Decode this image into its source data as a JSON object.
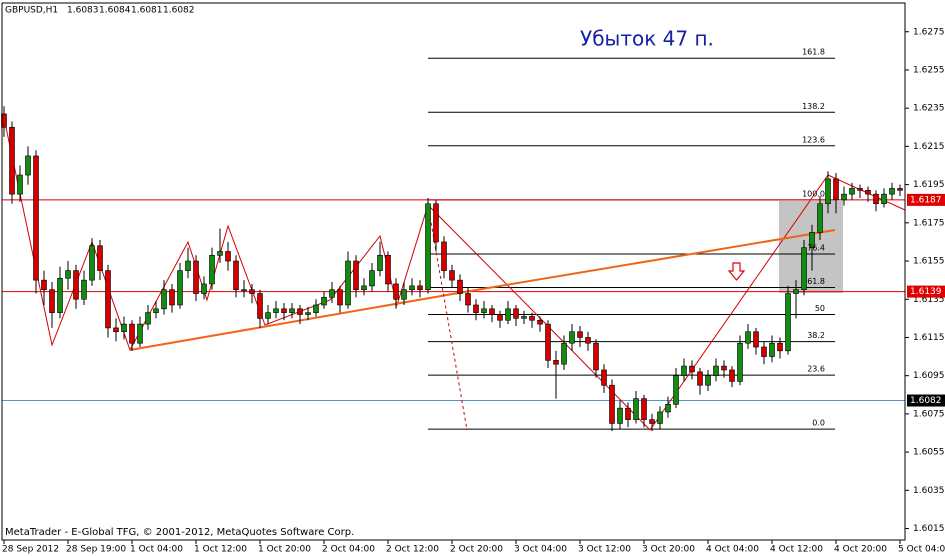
{
  "chart_data": {
    "type": "candlestick",
    "symbol": "GBPUSD,H1",
    "header_prices": [
      1.6083,
      1.6084,
      1.6081,
      1.6082
    ],
    "title": "Убыток 47 п.",
    "footer": "MetaTrader - E-Global TFG, © 2001-2012, MetaQuotes Software Corp.",
    "bull_color": "#118c11",
    "bear_color": "#d40000",
    "xlim": [
      -0.25,
      112.625
    ],
    "xticks": [
      {
        "value": 0,
        "label": "28 Sep 2012"
      },
      {
        "value": 8,
        "label": "28 Sep 19:00"
      },
      {
        "value": 16,
        "label": "1 Oct 04:00"
      },
      {
        "value": 24,
        "label": "1 Oct 12:00"
      },
      {
        "value": 32,
        "label": "1 Oct 20:00"
      },
      {
        "value": 40,
        "label": "2 Oct 04:00"
      },
      {
        "value": 48,
        "label": "2 Oct 12:00"
      },
      {
        "value": 56,
        "label": "2 Oct 20:00"
      },
      {
        "value": 64,
        "label": "3 Oct 04:00"
      },
      {
        "value": 72,
        "label": "3 Oct 12:00"
      },
      {
        "value": 80,
        "label": "3 Oct 20:00"
      },
      {
        "value": 88,
        "label": "4 Oct 04:00"
      },
      {
        "value": 96,
        "label": "4 Oct 12:00"
      },
      {
        "value": 104,
        "label": "4 Oct 20:00"
      },
      {
        "value": 112,
        "label": "5 Oct 04:00"
      }
    ],
    "ylim": [
      1.6009,
      1.6289
    ],
    "yticks": [
      1.6275,
      1.6255,
      1.6235,
      1.6215,
      1.6195,
      1.6175,
      1.6155,
      1.6135,
      1.6115,
      1.6095,
      1.6075,
      1.6055,
      1.6035,
      1.6015
    ],
    "hlines": [
      {
        "value": 1.6187,
        "color": "#e00000"
      },
      {
        "value": 1.6139,
        "color": "#e00000"
      },
      {
        "value": 1.6082,
        "color": "#000000",
        "line_color": "#5b93c9"
      }
    ],
    "fib": {
      "low": 1.6067,
      "high": 1.6187,
      "levels": [
        {
          "value": 0,
          "label": "0.0"
        },
        23.6,
        38.2,
        50,
        61.8,
        76.4,
        {
          "value": 100,
          "label": "100.0"
        },
        123.6,
        138.2,
        161.8
      ]
    },
    "ohlc": [
      [
        1.6232,
        1.6236,
        1.622,
        1.6225
      ],
      [
        1.6225,
        1.6228,
        1.6185,
        1.619
      ],
      [
        1.619,
        1.6205,
        1.6186,
        1.62
      ],
      [
        1.62,
        1.6215,
        1.6195,
        1.621
      ],
      [
        1.621,
        1.6213,
        1.6138,
        1.6145
      ],
      [
        1.6145,
        1.615,
        1.6132,
        1.614
      ],
      [
        1.614,
        1.6144,
        1.612,
        1.6128
      ],
      [
        1.6128,
        1.6152,
        1.6125,
        1.6146
      ],
      [
        1.6146,
        1.6155,
        1.614,
        1.615
      ],
      [
        1.615,
        1.6153,
        1.613,
        1.6135
      ],
      [
        1.6135,
        1.615,
        1.6132,
        1.6145
      ],
      [
        1.6145,
        1.6167,
        1.6142,
        1.6163
      ],
      [
        1.6163,
        1.6166,
        1.6145,
        1.615
      ],
      [
        1.615,
        1.6153,
        1.6115,
        1.612
      ],
      [
        1.612,
        1.6125,
        1.6113,
        1.6118
      ],
      [
        1.6118,
        1.6126,
        1.6114,
        1.6122
      ],
      [
        1.6122,
        1.6124,
        1.6108,
        1.6112
      ],
      [
        1.6112,
        1.6126,
        1.611,
        1.6122
      ],
      [
        1.6122,
        1.6132,
        1.6119,
        1.6128
      ],
      [
        1.6128,
        1.6134,
        1.6125,
        1.613
      ],
      [
        1.613,
        1.6145,
        1.6127,
        1.614
      ],
      [
        1.614,
        1.6143,
        1.6128,
        1.6132
      ],
      [
        1.6132,
        1.6154,
        1.613,
        1.615
      ],
      [
        1.615,
        1.6162,
        1.6146,
        1.6155
      ],
      [
        1.6155,
        1.6158,
        1.6134,
        1.6138
      ],
      [
        1.6138,
        1.6147,
        1.6135,
        1.6143
      ],
      [
        1.6143,
        1.6162,
        1.614,
        1.6158
      ],
      [
        1.6158,
        1.6172,
        1.6154,
        1.616
      ],
      [
        1.616,
        1.6165,
        1.615,
        1.6155
      ],
      [
        1.6155,
        1.6158,
        1.6136,
        1.614
      ],
      [
        1.614,
        1.6145,
        1.6136,
        1.614
      ],
      [
        1.614,
        1.6143,
        1.6133,
        1.6138
      ],
      [
        1.6138,
        1.614,
        1.612,
        1.6125
      ],
      [
        1.6125,
        1.6132,
        1.6122,
        1.6128
      ],
      [
        1.6128,
        1.6134,
        1.6125,
        1.613
      ],
      [
        1.613,
        1.6133,
        1.6124,
        1.6128
      ],
      [
        1.6128,
        1.6133,
        1.6125,
        1.613
      ],
      [
        1.613,
        1.6132,
        1.6122,
        1.6127
      ],
      [
        1.6127,
        1.6131,
        1.6124,
        1.6128
      ],
      [
        1.6128,
        1.6135,
        1.6126,
        1.6132
      ],
      [
        1.6132,
        1.6139,
        1.613,
        1.6136
      ],
      [
        1.6136,
        1.6144,
        1.6133,
        1.614
      ],
      [
        1.614,
        1.6142,
        1.6128,
        1.6132
      ],
      [
        1.6132,
        1.616,
        1.613,
        1.6155
      ],
      [
        1.6155,
        1.6158,
        1.6136,
        1.614
      ],
      [
        1.614,
        1.6146,
        1.6137,
        1.6142
      ],
      [
        1.6142,
        1.6154,
        1.6139,
        1.615
      ],
      [
        1.615,
        1.6165,
        1.6147,
        1.6158
      ],
      [
        1.6158,
        1.616,
        1.6139,
        1.6143
      ],
      [
        1.6143,
        1.6146,
        1.613,
        1.6135
      ],
      [
        1.6135,
        1.6144,
        1.6132,
        1.614
      ],
      [
        1.614,
        1.6146,
        1.6137,
        1.6142
      ],
      [
        1.6142,
        1.6145,
        1.6136,
        1.614
      ],
      [
        1.614,
        1.6188,
        1.6138,
        1.6185
      ],
      [
        1.6185,
        1.6187,
        1.616,
        1.6165
      ],
      [
        1.6165,
        1.6168,
        1.6146,
        1.615
      ],
      [
        1.615,
        1.6153,
        1.6141,
        1.6145
      ],
      [
        1.6145,
        1.6148,
        1.6134,
        1.6138
      ],
      [
        1.6138,
        1.6141,
        1.6128,
        1.6132
      ],
      [
        1.6132,
        1.6135,
        1.6124,
        1.6128
      ],
      [
        1.6128,
        1.6134,
        1.6125,
        1.613
      ],
      [
        1.613,
        1.6132,
        1.6123,
        1.6127
      ],
      [
        1.6127,
        1.6129,
        1.612,
        1.6124
      ],
      [
        1.6124,
        1.6134,
        1.6122,
        1.613
      ],
      [
        1.613,
        1.6132,
        1.6121,
        1.6125
      ],
      [
        1.6125,
        1.6129,
        1.6122,
        1.6126
      ],
      [
        1.6126,
        1.6128,
        1.612,
        1.6124
      ],
      [
        1.6124,
        1.6126,
        1.6118,
        1.6122
      ],
      [
        1.6122,
        1.6124,
        1.6099,
        1.6103
      ],
      [
        1.6103,
        1.6108,
        1.6083,
        1.6101
      ],
      [
        1.6101,
        1.6116,
        1.6098,
        1.6112
      ],
      [
        1.6112,
        1.6122,
        1.6108,
        1.6118
      ],
      [
        1.6118,
        1.6121,
        1.611,
        1.6115
      ],
      [
        1.6115,
        1.6118,
        1.6108,
        1.6112
      ],
      [
        1.6112,
        1.6114,
        1.6094,
        1.6098
      ],
      [
        1.6098,
        1.6101,
        1.6086,
        1.609
      ],
      [
        1.609,
        1.6093,
        1.6066,
        1.607
      ],
      [
        1.607,
        1.6082,
        1.6067,
        1.6078
      ],
      [
        1.6078,
        1.6081,
        1.6068,
        1.6072
      ],
      [
        1.6072,
        1.6087,
        1.607,
        1.6083
      ],
      [
        1.6083,
        1.6085,
        1.6068,
        1.6072
      ],
      [
        1.6072,
        1.6075,
        1.6066,
        1.607
      ],
      [
        1.607,
        1.6079,
        1.6067,
        1.6076
      ],
      [
        1.6076,
        1.6084,
        1.6073,
        1.608
      ],
      [
        1.608,
        1.6099,
        1.6078,
        1.6095
      ],
      [
        1.6095,
        1.6104,
        1.6092,
        1.61
      ],
      [
        1.61,
        1.6103,
        1.6093,
        1.6097
      ],
      [
        1.6097,
        1.6099,
        1.6085,
        1.609
      ],
      [
        1.609,
        1.6098,
        1.6087,
        1.6095
      ],
      [
        1.6095,
        1.6104,
        1.6092,
        1.61
      ],
      [
        1.61,
        1.6103,
        1.6094,
        1.6098
      ],
      [
        1.6098,
        1.61,
        1.6089,
        1.6092
      ],
      [
        1.6092,
        1.6116,
        1.609,
        1.6112
      ],
      [
        1.6112,
        1.6122,
        1.6109,
        1.6118
      ],
      [
        1.6118,
        1.612,
        1.6106,
        1.611
      ],
      [
        1.611,
        1.6113,
        1.6101,
        1.6105
      ],
      [
        1.6105,
        1.6116,
        1.6102,
        1.6112
      ],
      [
        1.6112,
        1.6115,
        1.6104,
        1.6108
      ],
      [
        1.6108,
        1.6142,
        1.6106,
        1.6138
      ],
      [
        1.6138,
        1.6145,
        1.6125,
        1.614
      ],
      [
        1.614,
        1.6166,
        1.6137,
        1.6162
      ],
      [
        1.6162,
        1.6174,
        1.615,
        1.617
      ],
      [
        1.617,
        1.6189,
        1.6166,
        1.6185
      ],
      [
        1.6185,
        1.6202,
        1.618,
        1.6198
      ],
      [
        1.6198,
        1.6201,
        1.618,
        1.6187
      ],
      [
        1.6187,
        1.6194,
        1.6184,
        1.619
      ],
      [
        1.619,
        1.6196,
        1.6187,
        1.6193
      ],
      [
        1.6193,
        1.6195,
        1.6188,
        1.6192
      ],
      [
        1.6192,
        1.6194,
        1.6186,
        1.619
      ],
      [
        1.619,
        1.6192,
        1.6181,
        1.6185
      ],
      [
        1.6185,
        1.6193,
        1.6183,
        1.619
      ],
      [
        1.619,
        1.6196,
        1.6187,
        1.6193
      ],
      [
        1.6193,
        1.6195,
        1.6189,
        1.6192
      ]
    ]
  }
}
